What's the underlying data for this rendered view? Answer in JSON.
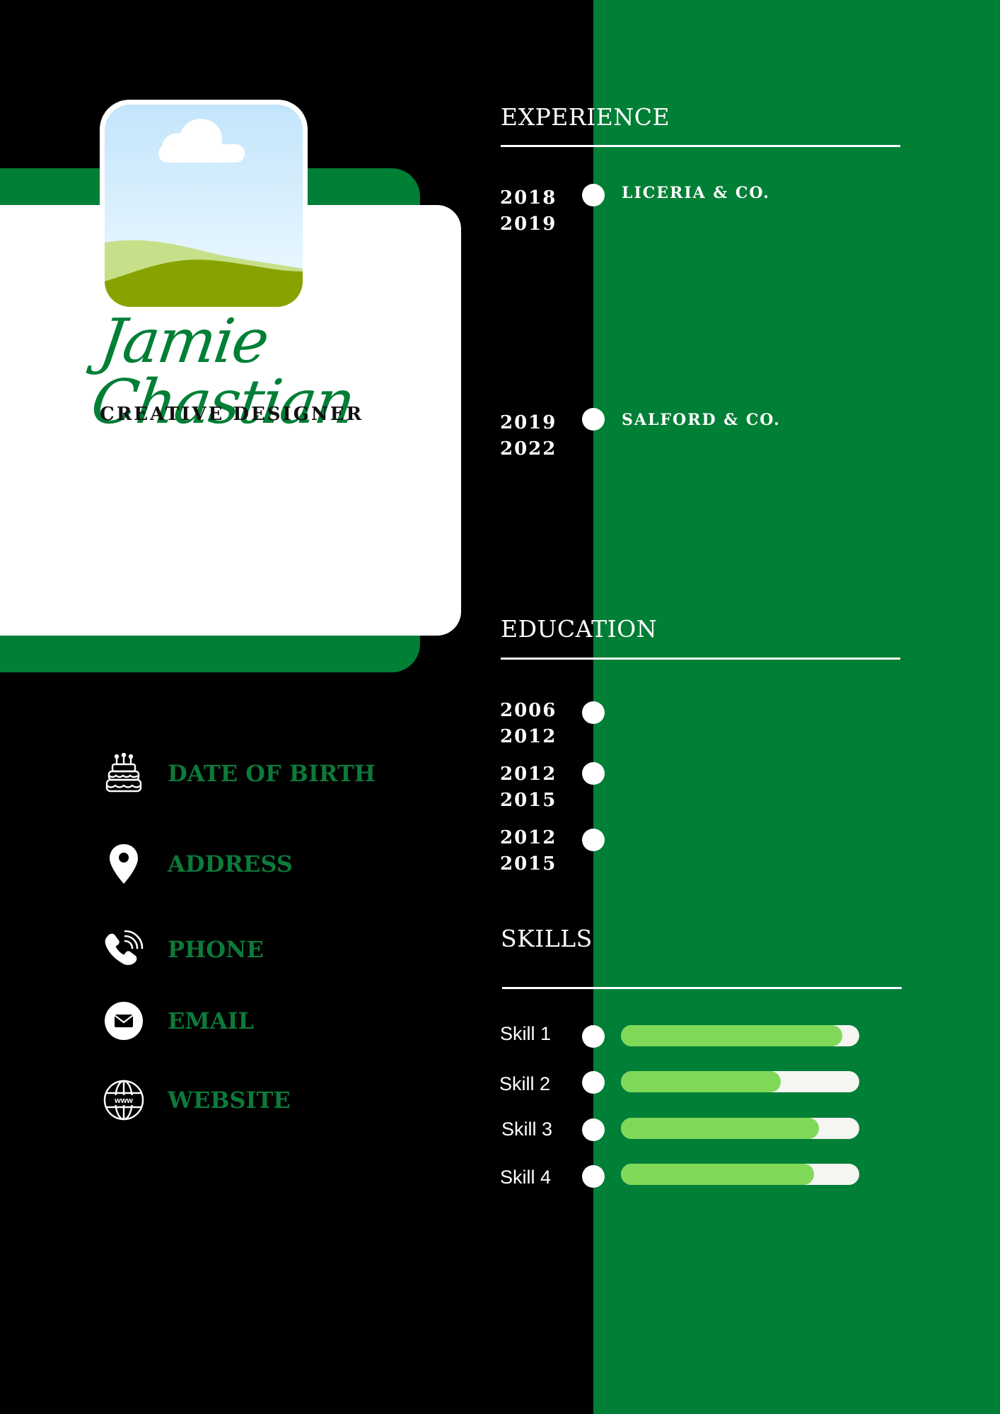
{
  "profile": {
    "name": "Jamie Chastian",
    "title": "CREATIVE DESIGNER",
    "photo_icon": "landscape-placeholder"
  },
  "contact": [
    {
      "label": "DATE OF BIRTH",
      "icon": "cake-icon"
    },
    {
      "label": "ADDRESS",
      "icon": "location-pin-icon"
    },
    {
      "label": "PHONE",
      "icon": "phone-icon"
    },
    {
      "label": "EMAIL",
      "icon": "email-icon"
    },
    {
      "label": "WEBSITE",
      "icon": "globe-icon"
    }
  ],
  "experience": {
    "heading": "EXPERIENCE",
    "items": [
      {
        "start": "2018",
        "end": "2019",
        "company": "LICERIA & CO."
      },
      {
        "start": "2019",
        "end": "2022",
        "company": "SALFORD & CO."
      }
    ]
  },
  "education": {
    "heading": "EDUCATION",
    "items": [
      {
        "start": "2006",
        "end": "2012"
      },
      {
        "start": "2012",
        "end": "2015"
      },
      {
        "start": "2012",
        "end": "2015"
      }
    ]
  },
  "skills": {
    "heading": "SKILLS",
    "items": [
      {
        "label": "Skill 1",
        "level": 0.93
      },
      {
        "label": "Skill 2",
        "level": 0.67
      },
      {
        "label": "Skill 3",
        "level": 0.83
      },
      {
        "label": "Skill 4",
        "level": 0.81
      }
    ]
  },
  "colors": {
    "green": "#007f36",
    "black": "#000000",
    "white": "#ffffff",
    "skill_fill": "#7fd858",
    "skill_track": "#f5f5f2",
    "label_green": "#0d7a3a"
  }
}
